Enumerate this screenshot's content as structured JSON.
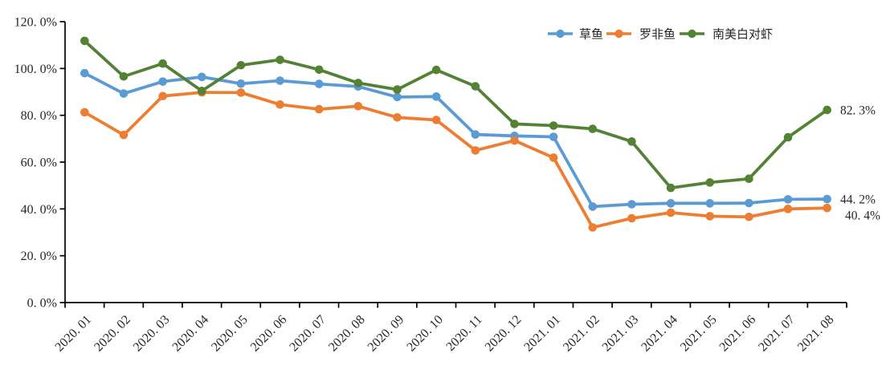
{
  "chart_data": {
    "type": "line",
    "categories": [
      "2020. 01",
      "2020. 02",
      "2020. 03",
      "2020. 04",
      "2020. 05",
      "2020. 06",
      "2020. 07",
      "2020. 08",
      "2020. 09",
      "2020. 10",
      "2020. 11",
      "2020. 12",
      "2021. 01",
      "2021. 02",
      "2021. 03",
      "2021. 04",
      "2021. 05",
      "2021. 06",
      "2021. 07",
      "2021. 08"
    ],
    "series": [
      {
        "name": "草鱼",
        "color": "#5B9BD5",
        "values": [
          98.0,
          89.3,
          94.4,
          96.4,
          93.5,
          94.8,
          93.4,
          92.3,
          87.8,
          88.0,
          71.8,
          71.2,
          70.8,
          41.0,
          42.0,
          42.4,
          42.4,
          42.5,
          44.1,
          44.2
        ],
        "end_label": "44. 2%"
      },
      {
        "name": "罗非鱼",
        "color": "#ED7D31",
        "values": [
          81.3,
          71.6,
          88.2,
          89.8,
          89.7,
          84.6,
          82.6,
          83.9,
          79.1,
          78.0,
          65.0,
          69.2,
          61.9,
          32.1,
          36.0,
          38.4,
          36.9,
          36.6,
          40.0,
          40.4
        ],
        "end_label": "40. 4%"
      },
      {
        "name": "南美白对虾",
        "color": "#548235",
        "values": [
          111.8,
          96.6,
          102.1,
          90.4,
          101.4,
          103.7,
          99.5,
          93.8,
          91.0,
          99.4,
          92.4,
          76.3,
          75.6,
          74.2,
          68.8,
          49.0,
          51.3,
          52.9,
          70.6,
          82.3
        ],
        "end_label": "82. 3%"
      }
    ],
    "ylim": [
      0,
      120
    ],
    "y_tick_interval": 20,
    "y_tick_labels": [
      "0. 0%",
      "20. 0%",
      "40. 0%",
      "60. 0%",
      "80. 0%",
      "100. 0%",
      "120. 0%"
    ],
    "grid": false,
    "legend_position": "top-right",
    "axis_color": "#000000",
    "text_color": "#262626",
    "background": "#FFFFFF"
  }
}
